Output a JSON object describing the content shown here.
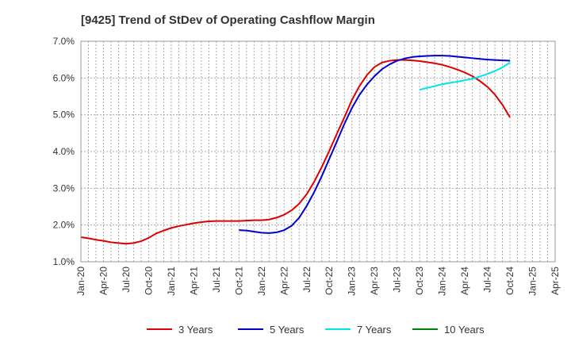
{
  "chart_data": {
    "type": "line",
    "title": "[9425]  Trend of StDev of Operating Cashflow Margin",
    "xlabel": "",
    "ylabel": "",
    "ylim": [
      1.0,
      7.0
    ],
    "y_ticks": [
      "1.0%",
      "2.0%",
      "3.0%",
      "4.0%",
      "5.0%",
      "6.0%",
      "7.0%"
    ],
    "x_ticks": [
      "Jan-20",
      "Apr-20",
      "Jul-20",
      "Oct-20",
      "Jan-21",
      "Apr-21",
      "Jul-21",
      "Oct-21",
      "Jan-22",
      "Apr-22",
      "Jul-22",
      "Oct-22",
      "Jan-23",
      "Apr-23",
      "Jul-23",
      "Oct-23",
      "Jan-24",
      "Apr-24",
      "Jul-24",
      "Oct-24",
      "Jan-25",
      "Apr-25"
    ],
    "x_range": [
      "Jan-20",
      "Apr-25"
    ],
    "grid": true,
    "legend_position": "bottom",
    "series": [
      {
        "name": "3 Years",
        "color": "#dd0000",
        "points": [
          [
            "Jan-20",
            1.67
          ],
          [
            "Feb-20",
            1.64
          ],
          [
            "Mar-20",
            1.6
          ],
          [
            "Apr-20",
            1.57
          ],
          [
            "May-20",
            1.53
          ],
          [
            "Jun-20",
            1.51
          ],
          [
            "Jul-20",
            1.49
          ],
          [
            "Aug-20",
            1.51
          ],
          [
            "Sep-20",
            1.56
          ],
          [
            "Oct-20",
            1.65
          ],
          [
            "Nov-20",
            1.77
          ],
          [
            "Dec-20",
            1.85
          ],
          [
            "Jan-21",
            1.92
          ],
          [
            "Feb-21",
            1.97
          ],
          [
            "Mar-21",
            2.01
          ],
          [
            "Apr-21",
            2.05
          ],
          [
            "May-21",
            2.08
          ],
          [
            "Jun-21",
            2.1
          ],
          [
            "Jul-21",
            2.11
          ],
          [
            "Aug-21",
            2.11
          ],
          [
            "Sep-21",
            2.11
          ],
          [
            "Oct-21",
            2.11
          ],
          [
            "Nov-21",
            2.12
          ],
          [
            "Dec-21",
            2.13
          ],
          [
            "Jan-22",
            2.13
          ],
          [
            "Feb-22",
            2.15
          ],
          [
            "Mar-22",
            2.2
          ],
          [
            "Apr-22",
            2.28
          ],
          [
            "May-22",
            2.4
          ],
          [
            "Jun-22",
            2.58
          ],
          [
            "Jul-22",
            2.84
          ],
          [
            "Aug-22",
            3.18
          ],
          [
            "Sep-22",
            3.58
          ],
          [
            "Oct-22",
            4.02
          ],
          [
            "Nov-22",
            4.48
          ],
          [
            "Dec-22",
            4.93
          ],
          [
            "Jan-23",
            5.4
          ],
          [
            "Feb-23",
            5.78
          ],
          [
            "Mar-23",
            6.08
          ],
          [
            "Apr-23",
            6.3
          ],
          [
            "May-23",
            6.42
          ],
          [
            "Jun-23",
            6.47
          ],
          [
            "Jul-23",
            6.49
          ],
          [
            "Aug-23",
            6.49
          ],
          [
            "Sep-23",
            6.48
          ],
          [
            "Oct-23",
            6.46
          ],
          [
            "Nov-23",
            6.43
          ],
          [
            "Dec-23",
            6.4
          ],
          [
            "Jan-24",
            6.36
          ],
          [
            "Feb-24",
            6.3
          ],
          [
            "Mar-24",
            6.23
          ],
          [
            "Apr-24",
            6.15
          ],
          [
            "May-24",
            6.05
          ],
          [
            "Jun-24",
            5.92
          ],
          [
            "Jul-24",
            5.76
          ],
          [
            "Aug-24",
            5.55
          ],
          [
            "Sep-24",
            5.27
          ],
          [
            "Oct-24",
            4.93
          ]
        ]
      },
      {
        "name": "5 Years",
        "color": "#0000cc",
        "points": [
          [
            "Oct-21",
            1.86
          ],
          [
            "Nov-21",
            1.85
          ],
          [
            "Dec-21",
            1.82
          ],
          [
            "Jan-22",
            1.79
          ],
          [
            "Feb-22",
            1.78
          ],
          [
            "Mar-22",
            1.8
          ],
          [
            "Apr-22",
            1.86
          ],
          [
            "May-22",
            1.98
          ],
          [
            "Jun-22",
            2.2
          ],
          [
            "Jul-22",
            2.52
          ],
          [
            "Aug-22",
            2.9
          ],
          [
            "Sep-22",
            3.33
          ],
          [
            "Oct-22",
            3.8
          ],
          [
            "Nov-22",
            4.27
          ],
          [
            "Dec-22",
            4.75
          ],
          [
            "Jan-23",
            5.18
          ],
          [
            "Feb-23",
            5.54
          ],
          [
            "Mar-23",
            5.82
          ],
          [
            "Apr-23",
            6.05
          ],
          [
            "May-23",
            6.24
          ],
          [
            "Jun-23",
            6.37
          ],
          [
            "Jul-23",
            6.47
          ],
          [
            "Aug-23",
            6.53
          ],
          [
            "Sep-23",
            6.57
          ],
          [
            "Oct-23",
            6.59
          ],
          [
            "Nov-23",
            6.6
          ],
          [
            "Dec-23",
            6.61
          ],
          [
            "Jan-24",
            6.61
          ],
          [
            "Feb-24",
            6.6
          ],
          [
            "Mar-24",
            6.58
          ],
          [
            "Apr-24",
            6.56
          ],
          [
            "May-24",
            6.54
          ],
          [
            "Jun-24",
            6.52
          ],
          [
            "Jul-24",
            6.5
          ],
          [
            "Aug-24",
            6.49
          ],
          [
            "Sep-24",
            6.48
          ],
          [
            "Oct-24",
            6.47
          ]
        ]
      },
      {
        "name": "7 Years",
        "color": "#00e5e5",
        "points": [
          [
            "Oct-23",
            5.68
          ],
          [
            "Nov-23",
            5.73
          ],
          [
            "Dec-23",
            5.78
          ],
          [
            "Jan-24",
            5.83
          ],
          [
            "Feb-24",
            5.87
          ],
          [
            "Mar-24",
            5.9
          ],
          [
            "Apr-24",
            5.94
          ],
          [
            "May-24",
            5.98
          ],
          [
            "Jun-24",
            6.04
          ],
          [
            "Jul-24",
            6.11
          ],
          [
            "Aug-24",
            6.19
          ],
          [
            "Sep-24",
            6.29
          ],
          [
            "Oct-24",
            6.42
          ]
        ]
      },
      {
        "name": "10 Years",
        "color": "#008000",
        "points": []
      }
    ]
  }
}
